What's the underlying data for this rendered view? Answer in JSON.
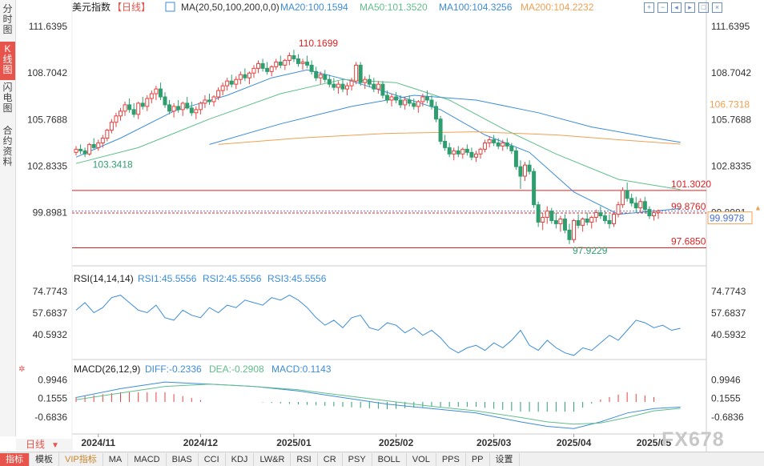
{
  "sidebar": {
    "items": [
      {
        "label": "分时图",
        "active": false
      },
      {
        "label": "K线图",
        "active": true
      },
      {
        "label": "闪电图",
        "active": false
      },
      {
        "label": "合约资料",
        "active": false
      }
    ]
  },
  "header": {
    "symbol": "美元指数",
    "period": "【日线】",
    "ma_params": "MA(20,50,100,200,0,0)",
    "ma20": "MA20:100.1594",
    "ma50": "MA50:101.3520",
    "ma100": "MA100:104.3256",
    "ma200": "MA200:104.2232"
  },
  "window_icons": [
    "zoom-in-icon",
    "zoom-out-icon",
    "left-arrow-icon",
    "right-arrow-icon",
    "fit-icon",
    "close-icon"
  ],
  "colors": {
    "up": "#e8423f",
    "down": "#2e9e6f",
    "ma20": "#3c8dd9",
    "ma50": "#5fbf8a",
    "ma100": "#3c8dd9",
    "ma200": "#f0a050",
    "line_red": "#e02020",
    "accent": "#e6544b"
  },
  "price_axis": {
    "ticks": [
      "111.6395",
      "108.7042",
      "105.7688",
      "102.8335",
      "99.8981"
    ],
    "ylim": [
      96.9,
      112.3
    ]
  },
  "price_tags": {
    "ma_tag": "106.7318",
    "current": "99.9978"
  },
  "levels": [
    {
      "label": "101.3020",
      "value": 101.302
    },
    {
      "label": "99.8760",
      "value": 99.876
    },
    {
      "label": "97.6850",
      "value": 97.685
    }
  ],
  "annotations": {
    "high": "110.1699",
    "low1": "103.3418",
    "low2": "97.9229"
  },
  "rsi": {
    "title": "RSI(14,14,14)",
    "rsi1": "RSI1:45.5556",
    "rsi2": "RSI2:45.5556",
    "rsi3": "RSI3:45.5556",
    "ticks": [
      "74.7743",
      "57.6837",
      "40.5932"
    ]
  },
  "macd": {
    "title": "MACD(26,12,9)",
    "diff": "DIFF:-0.2336",
    "dea": "DEA:-0.2908",
    "macd": "MACD:0.1143",
    "ticks": [
      "0.9946",
      "0.1555",
      "-0.6836"
    ]
  },
  "time_axis": {
    "period_tab": "日线",
    "labels": [
      "2024/11",
      "2024/12",
      "2025/01",
      "2025/02",
      "2025/03",
      "2025/04",
      "2025/05"
    ]
  },
  "watermark": "FX678",
  "bottom_tabs": [
    "指标",
    "模板",
    "VIP指标",
    "MA",
    "MACD",
    "BIAS",
    "CCI",
    "KDJ",
    "LW&R",
    "RSI",
    "CR",
    "PSY",
    "BOLL",
    "VOL",
    "PPS",
    "PP",
    "设置"
  ],
  "chart_data": {
    "type": "candlestick",
    "ohlc": [
      [
        103.7,
        104.1,
        103.5,
        103.9
      ],
      [
        103.9,
        104.2,
        103.6,
        103.8
      ],
      [
        103.8,
        104.0,
        103.4,
        103.6
      ],
      [
        103.6,
        104.3,
        103.5,
        104.2
      ],
      [
        104.2,
        104.6,
        103.9,
        104.0
      ],
      [
        104.0,
        104.5,
        103.8,
        104.3
      ],
      [
        104.3,
        104.8,
        104.0,
        104.6
      ],
      [
        104.6,
        105.2,
        104.4,
        105.1
      ],
      [
        105.1,
        105.8,
        104.9,
        105.6
      ],
      [
        105.6,
        106.2,
        105.3,
        106.0
      ],
      [
        106.0,
        106.5,
        105.7,
        106.3
      ],
      [
        106.3,
        106.9,
        106.0,
        106.7
      ],
      [
        106.7,
        107.1,
        106.2,
        106.4
      ],
      [
        106.4,
        106.8,
        105.9,
        106.1
      ],
      [
        106.1,
        106.9,
        105.8,
        106.8
      ],
      [
        106.8,
        107.2,
        106.4,
        106.6
      ],
      [
        106.6,
        107.3,
        106.3,
        107.1
      ],
      [
        107.1,
        107.6,
        106.8,
        107.4
      ],
      [
        107.4,
        107.9,
        107.0,
        107.7
      ],
      [
        107.7,
        108.1,
        107.0,
        107.2
      ],
      [
        107.2,
        107.5,
        106.5,
        106.7
      ],
      [
        106.7,
        107.0,
        106.1,
        106.3
      ],
      [
        106.3,
        106.8,
        105.9,
        106.6
      ],
      [
        106.6,
        107.0,
        106.2,
        106.4
      ],
      [
        106.4,
        106.9,
        106.0,
        106.8
      ],
      [
        106.8,
        107.2,
        106.4,
        106.5
      ],
      [
        106.5,
        106.9,
        106.0,
        106.2
      ],
      [
        106.2,
        106.6,
        105.8,
        106.4
      ],
      [
        106.4,
        106.9,
        106.1,
        106.8
      ],
      [
        106.8,
        107.3,
        106.5,
        107.0
      ],
      [
        107.0,
        107.4,
        106.7,
        106.9
      ],
      [
        106.9,
        107.3,
        106.6,
        107.2
      ],
      [
        107.2,
        107.8,
        107.0,
        107.6
      ],
      [
        107.6,
        108.1,
        107.3,
        107.9
      ],
      [
        107.9,
        108.4,
        107.6,
        108.2
      ],
      [
        108.2,
        108.6,
        107.8,
        108.0
      ],
      [
        108.0,
        108.5,
        107.7,
        108.3
      ],
      [
        108.3,
        108.8,
        108.0,
        108.6
      ],
      [
        108.6,
        109.0,
        108.2,
        108.4
      ],
      [
        108.4,
        108.8,
        108.0,
        108.7
      ],
      [
        108.7,
        109.2,
        108.4,
        109.0
      ],
      [
        109.0,
        109.5,
        108.7,
        109.3
      ],
      [
        109.3,
        109.6,
        108.8,
        109.0
      ],
      [
        109.0,
        109.4,
        108.6,
        108.8
      ],
      [
        108.8,
        109.2,
        108.5,
        109.1
      ],
      [
        109.1,
        109.6,
        108.9,
        109.4
      ],
      [
        109.4,
        109.8,
        109.0,
        109.2
      ],
      [
        109.2,
        109.6,
        108.9,
        109.5
      ],
      [
        109.5,
        110.0,
        109.2,
        109.8
      ],
      [
        109.8,
        110.17,
        109.4,
        109.6
      ],
      [
        109.6,
        109.9,
        109.1,
        109.3
      ],
      [
        109.3,
        109.6,
        108.9,
        109.4
      ],
      [
        109.4,
        109.8,
        109.0,
        109.2
      ],
      [
        109.2,
        109.5,
        108.6,
        108.8
      ],
      [
        108.8,
        109.1,
        108.2,
        108.4
      ],
      [
        108.4,
        108.8,
        108.0,
        108.6
      ],
      [
        108.6,
        108.9,
        108.1,
        108.3
      ],
      [
        108.3,
        108.6,
        107.8,
        108.0
      ],
      [
        108.0,
        108.4,
        107.6,
        107.8
      ],
      [
        107.8,
        108.2,
        107.4,
        108.0
      ],
      [
        108.0,
        108.3,
        107.5,
        107.7
      ],
      [
        107.7,
        108.1,
        107.3,
        107.9
      ],
      [
        107.9,
        108.4,
        107.6,
        108.2
      ],
      [
        108.2,
        109.4,
        108.0,
        109.2
      ],
      [
        109.2,
        109.4,
        107.9,
        108.1
      ],
      [
        108.1,
        108.5,
        107.7,
        108.3
      ],
      [
        108.3,
        108.6,
        107.8,
        108.0
      ],
      [
        108.0,
        108.4,
        107.5,
        107.7
      ],
      [
        107.7,
        108.2,
        107.4,
        108.0
      ],
      [
        108.0,
        108.2,
        107.1,
        107.3
      ],
      [
        107.3,
        107.6,
        106.8,
        107.0
      ],
      [
        107.0,
        107.4,
        106.6,
        107.2
      ],
      [
        107.2,
        107.5,
        106.8,
        107.0
      ],
      [
        107.0,
        107.3,
        106.5,
        106.7
      ],
      [
        106.7,
        107.2,
        106.4,
        107.0
      ],
      [
        107.0,
        107.3,
        106.6,
        106.8
      ],
      [
        106.8,
        107.1,
        106.4,
        106.6
      ],
      [
        106.6,
        107.0,
        106.2,
        106.9
      ],
      [
        106.9,
        107.4,
        106.6,
        107.2
      ],
      [
        107.2,
        107.6,
        106.8,
        107.0
      ],
      [
        107.0,
        107.3,
        106.4,
        106.6
      ],
      [
        106.6,
        106.9,
        105.6,
        105.8
      ],
      [
        105.8,
        106.0,
        104.2,
        104.4
      ],
      [
        104.4,
        104.8,
        103.8,
        104.0
      ],
      [
        104.0,
        104.3,
        103.4,
        103.6
      ],
      [
        103.6,
        104.0,
        103.2,
        103.8
      ],
      [
        103.8,
        104.1,
        103.4,
        103.6
      ],
      [
        103.6,
        104.0,
        103.3,
        103.9
      ],
      [
        103.9,
        104.2,
        103.5,
        103.7
      ],
      [
        103.7,
        104.0,
        103.2,
        103.4
      ],
      [
        103.4,
        103.8,
        103.1,
        103.6
      ],
      [
        103.6,
        104.0,
        103.3,
        103.9
      ],
      [
        103.9,
        104.5,
        103.7,
        104.3
      ],
      [
        104.3,
        104.7,
        104.0,
        104.5
      ],
      [
        104.5,
        104.8,
        104.1,
        104.3
      ],
      [
        104.3,
        104.6,
        103.9,
        104.1
      ],
      [
        104.1,
        104.5,
        103.8,
        104.3
      ],
      [
        104.3,
        104.6,
        103.9,
        104.1
      ],
      [
        104.1,
        104.3,
        103.6,
        103.8
      ],
      [
        103.8,
        104.0,
        102.6,
        102.8
      ],
      [
        102.8,
        103.2,
        101.4,
        102.2
      ],
      [
        102.2,
        103.1,
        101.9,
        102.9
      ],
      [
        102.9,
        103.2,
        102.3,
        102.5
      ],
      [
        102.5,
        102.7,
        100.2,
        100.4
      ],
      [
        100.4,
        100.6,
        99.0,
        99.3
      ],
      [
        99.3,
        99.9,
        98.8,
        99.6
      ],
      [
        99.6,
        100.3,
        99.2,
        100.0
      ],
      [
        100.0,
        100.2,
        99.2,
        99.4
      ],
      [
        99.4,
        99.9,
        98.9,
        99.2
      ],
      [
        99.2,
        99.7,
        98.7,
        99.5
      ],
      [
        99.5,
        99.8,
        98.6,
        98.8
      ],
      [
        98.8,
        99.2,
        97.92,
        98.2
      ],
      [
        98.2,
        99.5,
        98.0,
        99.4
      ],
      [
        99.4,
        99.8,
        98.9,
        99.1
      ],
      [
        99.1,
        99.6,
        98.7,
        99.5
      ],
      [
        99.5,
        99.9,
        99.1,
        99.3
      ],
      [
        99.3,
        99.7,
        98.9,
        99.6
      ],
      [
        99.6,
        100.1,
        99.3,
        99.9
      ],
      [
        99.9,
        100.3,
        99.5,
        99.7
      ],
      [
        99.7,
        100.0,
        99.2,
        99.4
      ],
      [
        99.4,
        99.8,
        98.9,
        99.2
      ],
      [
        99.2,
        99.9,
        99.0,
        99.8
      ],
      [
        99.8,
        100.6,
        99.6,
        100.4
      ],
      [
        100.4,
        101.5,
        100.2,
        101.3
      ],
      [
        101.3,
        101.8,
        100.6,
        100.8
      ],
      [
        100.8,
        101.1,
        100.3,
        100.5
      ],
      [
        100.5,
        100.9,
        99.9,
        100.2
      ],
      [
        100.2,
        100.8,
        99.9,
        100.6
      ],
      [
        100.6,
        100.9,
        99.9,
        100.1
      ],
      [
        100.1,
        100.3,
        99.5,
        99.7
      ],
      [
        99.7,
        100.1,
        99.4,
        99.9
      ],
      [
        99.9,
        100.1,
        99.5,
        99.998
      ]
    ],
    "ma20": [
      [
        0,
        103.4
      ],
      [
        10,
        104.6
      ],
      [
        22,
        106.3
      ],
      [
        34,
        107.3
      ],
      [
        44,
        108.4
      ],
      [
        52,
        108.9
      ],
      [
        62,
        108.2
      ],
      [
        72,
        107.3
      ],
      [
        82,
        106.4
      ],
      [
        92,
        104.8
      ],
      [
        102,
        103.7
      ],
      [
        112,
        101.2
      ],
      [
        122,
        99.8
      ],
      [
        130,
        100.0
      ],
      [
        136,
        100.16
      ]
    ],
    "ma50": [
      [
        0,
        103.0
      ],
      [
        14,
        104.0
      ],
      [
        30,
        105.8
      ],
      [
        46,
        107.4
      ],
      [
        60,
        108.3
      ],
      [
        72,
        108.1
      ],
      [
        84,
        107.0
      ],
      [
        96,
        105.2
      ],
      [
        108,
        103.6
      ],
      [
        122,
        102.0
      ],
      [
        136,
        101.35
      ]
    ],
    "ma100": [
      [
        0,
        null
      ],
      [
        30,
        104.2
      ],
      [
        46,
        105.5
      ],
      [
        62,
        106.6
      ],
      [
        76,
        107.3
      ],
      [
        90,
        107.0
      ],
      [
        104,
        106.2
      ],
      [
        116,
        105.3
      ],
      [
        128,
        104.7
      ],
      [
        136,
        104.33
      ]
    ],
    "ma200": [
      [
        32,
        104.2
      ],
      [
        50,
        104.6
      ],
      [
        70,
        104.9
      ],
      [
        90,
        105.0
      ],
      [
        108,
        104.8
      ],
      [
        122,
        104.5
      ],
      [
        136,
        104.22
      ]
    ],
    "rsi": [
      [
        0,
        60
      ],
      [
        2,
        66
      ],
      [
        4,
        58
      ],
      [
        6,
        62
      ],
      [
        8,
        70
      ],
      [
        10,
        72
      ],
      [
        12,
        66
      ],
      [
        14,
        60
      ],
      [
        16,
        58
      ],
      [
        18,
        64
      ],
      [
        20,
        54
      ],
      [
        22,
        52
      ],
      [
        24,
        60
      ],
      [
        26,
        56
      ],
      [
        28,
        54
      ],
      [
        30,
        62
      ],
      [
        32,
        58
      ],
      [
        34,
        64
      ],
      [
        36,
        62
      ],
      [
        38,
        68
      ],
      [
        40,
        66
      ],
      [
        42,
        64
      ],
      [
        44,
        70
      ],
      [
        46,
        68
      ],
      [
        48,
        72
      ],
      [
        50,
        68
      ],
      [
        52,
        62
      ],
      [
        54,
        54
      ],
      [
        56,
        48
      ],
      [
        58,
        52
      ],
      [
        60,
        46
      ],
      [
        62,
        54
      ],
      [
        64,
        56
      ],
      [
        66,
        46
      ],
      [
        68,
        44
      ],
      [
        70,
        50
      ],
      [
        72,
        48
      ],
      [
        74,
        42
      ],
      [
        76,
        46
      ],
      [
        78,
        40
      ],
      [
        80,
        44
      ],
      [
        82,
        38
      ],
      [
        84,
        30
      ],
      [
        86,
        26
      ],
      [
        88,
        30
      ],
      [
        90,
        32
      ],
      [
        92,
        28
      ],
      [
        94,
        34
      ],
      [
        96,
        30
      ],
      [
        98,
        36
      ],
      [
        100,
        44
      ],
      [
        102,
        32
      ],
      [
        104,
        28
      ],
      [
        106,
        36
      ],
      [
        108,
        30
      ],
      [
        110,
        26
      ],
      [
        112,
        24
      ],
      [
        114,
        30
      ],
      [
        116,
        28
      ],
      [
        118,
        34
      ],
      [
        120,
        40
      ],
      [
        122,
        36
      ],
      [
        124,
        44
      ],
      [
        126,
        52
      ],
      [
        128,
        50
      ],
      [
        130,
        46
      ],
      [
        132,
        48
      ],
      [
        134,
        44
      ],
      [
        136,
        45.56
      ]
    ],
    "macd_diff": [
      [
        0,
        0.2
      ],
      [
        10,
        0.6
      ],
      [
        20,
        0.9
      ],
      [
        30,
        0.8
      ],
      [
        40,
        0.7
      ],
      [
        50,
        0.5
      ],
      [
        60,
        0.2
      ],
      [
        70,
        -0.1
      ],
      [
        80,
        -0.3
      ],
      [
        90,
        -0.5
      ],
      [
        100,
        -0.9
      ],
      [
        106,
        -1.1
      ],
      [
        112,
        -1.2
      ],
      [
        118,
        -0.9
      ],
      [
        124,
        -0.5
      ],
      [
        130,
        -0.3
      ],
      [
        136,
        -0.23
      ]
    ],
    "macd_dea": [
      [
        0,
        0.1
      ],
      [
        10,
        0.4
      ],
      [
        20,
        0.7
      ],
      [
        30,
        0.8
      ],
      [
        40,
        0.7
      ],
      [
        50,
        0.55
      ],
      [
        60,
        0.3
      ],
      [
        70,
        0.05
      ],
      [
        80,
        -0.2
      ],
      [
        90,
        -0.4
      ],
      [
        100,
        -0.7
      ],
      [
        106,
        -0.9
      ],
      [
        112,
        -1.0
      ],
      [
        118,
        -0.95
      ],
      [
        124,
        -0.7
      ],
      [
        130,
        -0.4
      ],
      [
        136,
        -0.29
      ]
    ],
    "macd_ylim": [
      -1.3,
      1.3
    ]
  }
}
